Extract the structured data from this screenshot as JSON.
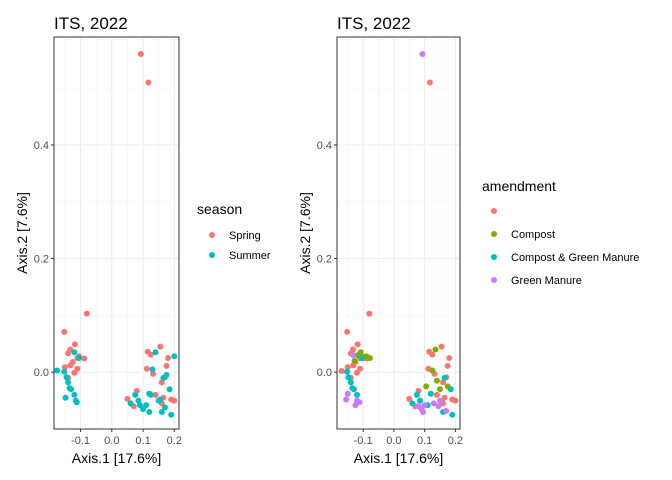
{
  "chart_data": [
    {
      "type": "scatter",
      "title": "ITS, 2022",
      "xlabel": "Axis.1   [17.6%]",
      "ylabel": "Axis.2   [7.6%]",
      "xlim": [
        -0.185,
        0.215
      ],
      "ylim": [
        -0.1,
        0.59
      ],
      "x_ticks": [
        -0.1,
        0.0,
        0.1,
        0.2
      ],
      "x_tick_labels": [
        "-0.1",
        "0.0",
        "0.1",
        "0.2"
      ],
      "y_ticks": [
        0.0,
        0.2,
        0.4
      ],
      "y_tick_labels": [
        "0.0",
        "0.2",
        "0.4"
      ],
      "grid": true,
      "legend": {
        "title": "season",
        "placement": "right",
        "entries": [
          {
            "label": "Spring",
            "color": "#F8766D"
          },
          {
            "label": "Summer",
            "color": "#00BFC4"
          }
        ]
      },
      "series": [
        {
          "name": "Spring",
          "color": "#F8766D",
          "x": [
            0.093,
            0.117,
            -0.08,
            -0.152,
            -0.118,
            -0.133,
            -0.14,
            -0.105,
            -0.11,
            -0.125,
            -0.088,
            -0.132,
            -0.15,
            -0.11,
            -0.12,
            -0.14,
            0.05,
            0.115,
            0.125,
            0.155,
            0.18,
            0.175,
            0.112,
            0.132,
            0.17,
            0.16,
            0.08,
            0.14,
            0.12,
            0.19,
            0.2,
            0.16,
            0.07,
            0.165
          ],
          "y": [
            0.56,
            0.51,
            0.103,
            0.071,
            0.049,
            0.04,
            0.033,
            0.028,
            0.025,
            0.018,
            0.024,
            0.012,
            0.009,
            0.006,
            -0.001,
            -0.01,
            -0.047,
            0.036,
            0.031,
            0.045,
            0.025,
            0.011,
            0.006,
            -0.003,
            -0.009,
            -0.018,
            -0.033,
            -0.04,
            -0.038,
            -0.048,
            -0.05,
            -0.055,
            -0.06,
            -0.045
          ]
        },
        {
          "name": "Summer",
          "color": "#00BFC4",
          "x": [
            -0.175,
            -0.152,
            -0.145,
            -0.14,
            -0.135,
            -0.13,
            -0.12,
            -0.115,
            -0.112,
            -0.12,
            -0.148,
            -0.105,
            0.06,
            0.075,
            0.085,
            0.09,
            0.1,
            0.11,
            0.12,
            0.125,
            0.13,
            0.14,
            0.15,
            0.16,
            0.165,
            0.175,
            0.185,
            0.19,
            0.2,
            0.12,
            0.155,
            0.17
          ],
          "y": [
            0.003,
            0.001,
            -0.009,
            -0.018,
            -0.028,
            -0.03,
            -0.04,
            -0.05,
            -0.053,
            0.035,
            -0.045,
            0.025,
            -0.055,
            -0.04,
            -0.05,
            -0.058,
            -0.065,
            -0.058,
            -0.07,
            -0.04,
            0.005,
            0.035,
            -0.05,
            -0.07,
            -0.01,
            -0.005,
            -0.03,
            -0.075,
            0.028,
            -0.038,
            -0.048,
            -0.062
          ]
        }
      ]
    },
    {
      "type": "scatter",
      "title": "ITS, 2022",
      "xlabel": "Axis.1   [17.6%]",
      "ylabel": "Axis.2   [7.6%]",
      "xlim": [
        -0.185,
        0.215
      ],
      "ylim": [
        -0.1,
        0.59
      ],
      "x_ticks": [
        -0.1,
        0.0,
        0.1,
        0.2
      ],
      "x_tick_labels": [
        "-0.1",
        "0.0",
        "0.1",
        "0.2"
      ],
      "y_ticks": [
        0.0,
        0.2,
        0.4
      ],
      "y_tick_labels": [
        "0.0",
        "0.2",
        "0.4"
      ],
      "grid": true,
      "legend": {
        "title": "amendment",
        "placement": "right",
        "entries": [
          {
            "label": "",
            "color": "#F8766D"
          },
          {
            "label": "Compost",
            "color": "#7CAE00"
          },
          {
            "label": "Compost & Green Manure",
            "color": "#00BFC4"
          },
          {
            "label": "Green Manure",
            "color": "#C77CFF"
          }
        ]
      },
      "series": [
        {
          "name": "",
          "color": "#F8766D",
          "x": [
            0.117,
            -0.08,
            -0.152,
            -0.118,
            -0.133,
            -0.14,
            -0.105,
            -0.11,
            -0.125,
            -0.088,
            -0.132,
            -0.15,
            -0.11,
            -0.12,
            -0.14,
            0.05,
            0.115,
            0.125,
            0.155,
            0.18,
            0.175,
            0.112,
            0.132,
            0.17,
            0.16,
            0.08,
            0.14,
            0.12,
            0.19,
            0.2,
            0.16,
            0.07,
            0.165,
            -0.17
          ],
          "y": [
            0.51,
            0.103,
            0.071,
            0.049,
            0.04,
            0.033,
            0.028,
            0.025,
            0.018,
            0.024,
            0.012,
            0.009,
            0.006,
            -0.001,
            -0.01,
            -0.047,
            0.036,
            0.031,
            0.045,
            0.025,
            0.011,
            0.006,
            -0.003,
            -0.009,
            -0.018,
            -0.033,
            -0.04,
            -0.038,
            -0.048,
            -0.05,
            -0.055,
            -0.06,
            -0.045,
            0.002
          ]
        },
        {
          "name": "Compost",
          "color": "#7CAE00",
          "x": [
            -0.118,
            -0.108,
            -0.1,
            -0.09,
            -0.078,
            -0.128,
            0.125,
            0.14,
            0.105,
            0.175,
            0.15,
            0.135
          ],
          "y": [
            0.03,
            0.035,
            0.025,
            0.028,
            0.025,
            0.02,
            0.003,
            -0.015,
            -0.025,
            -0.025,
            -0.03,
            0.04
          ]
        },
        {
          "name": "Compost & Green Manure",
          "color": "#00BFC4",
          "x": [
            -0.148,
            -0.14,
            -0.135,
            -0.13,
            -0.12,
            -0.152,
            -0.105,
            0.06,
            0.075,
            0.085,
            0.11,
            0.12,
            0.16,
            0.185,
            0.19,
            0.165
          ],
          "y": [
            -0.009,
            -0.018,
            -0.028,
            -0.03,
            -0.04,
            0.001,
            0.025,
            -0.055,
            -0.04,
            -0.05,
            -0.058,
            -0.038,
            -0.07,
            -0.03,
            -0.075,
            -0.01
          ]
        },
        {
          "name": "Green Manure",
          "color": "#C77CFF",
          "x": [
            0.093,
            -0.112,
            -0.12,
            -0.125,
            -0.155,
            -0.15,
            -0.132,
            0.09,
            0.1,
            0.13,
            0.15,
            0.17,
            0.145,
            0.08,
            0.095
          ],
          "y": [
            0.56,
            -0.053,
            -0.05,
            -0.058,
            -0.048,
            -0.038,
            0.03,
            -0.065,
            -0.058,
            -0.055,
            -0.05,
            -0.068,
            -0.06,
            -0.06,
            -0.07
          ]
        }
      ]
    }
  ]
}
